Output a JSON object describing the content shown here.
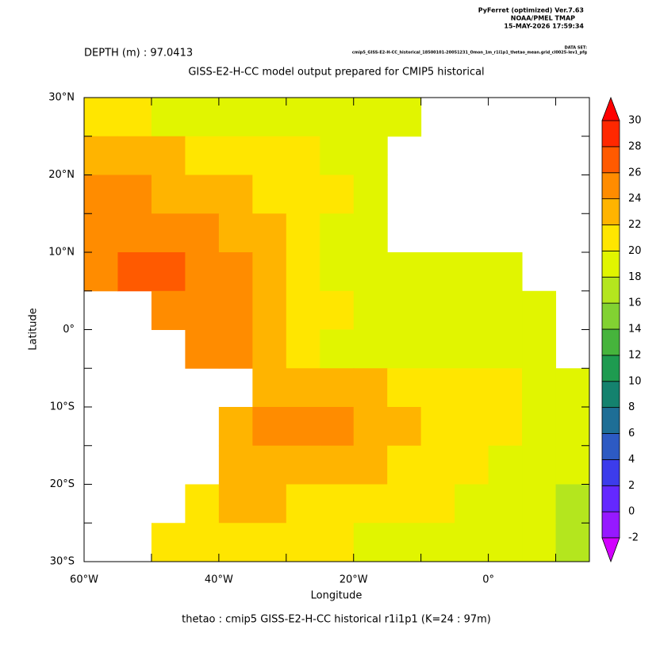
{
  "chart_data": {
    "type": "heatmap",
    "header": [
      "PyFerret (optimized) Ver.7.63",
      "NOAA/PMEL TMAP",
      "15-MAY-2026 17:59:34"
    ],
    "dataset_label": "DATA SET:",
    "dataset": "cmip5_GISS-E2-H-CC_historical_18500101-20051231_Omon_1m_r1i1p1_thetao_mean.grid_cl0025-lev1_pfg",
    "subtitle": "DEPTH (m) : 97.0413",
    "title": "GISS-E2-H-CC model output prepared for CMIP5 historical",
    "xlabel": "Longitude",
    "ylabel": "Latitude",
    "footer": "thetao : cmip5 GISS-E2-H-CC historical r1i1p1   (K=24 : 97m)",
    "xlim": [
      -60,
      15
    ],
    "ylim": [
      -30,
      30
    ],
    "xticks": [
      {
        "value": -60,
        "label": "60°W"
      },
      {
        "value": -40,
        "label": "40°W"
      },
      {
        "value": -20,
        "label": "20°W"
      },
      {
        "value": 0,
        "label": "0°"
      }
    ],
    "xminorticks": [
      -50,
      -30,
      -10,
      10
    ],
    "yticks": [
      {
        "value": 30,
        "label": "30°N"
      },
      {
        "value": 20,
        "label": "20°N"
      },
      {
        "value": 10,
        "label": "10°N"
      },
      {
        "value": 0,
        "label": "0°"
      },
      {
        "value": -10,
        "label": "10°S"
      },
      {
        "value": -20,
        "label": "20°S"
      },
      {
        "value": -30,
        "label": "30°S"
      }
    ],
    "yminorticks": [
      25,
      15,
      5,
      -5,
      -15,
      -25
    ],
    "x": [
      -57.5,
      -52.5,
      -47.5,
      -42.5,
      -37.5,
      -32.5,
      -27.5,
      -22.5,
      -17.5,
      -12.5,
      -7.5,
      -2.5,
      2.5,
      7.5,
      12.5
    ],
    "y": [
      27.5,
      22.5,
      17.5,
      12.5,
      7.5,
      2.5,
      -2.5,
      -7.5,
      -12.5,
      -17.5,
      -22.5,
      -27.5
    ],
    "z": [
      [
        21,
        20,
        19,
        18.5,
        19,
        19.5,
        19.5,
        19.5,
        19,
        18.5,
        null,
        null,
        null,
        null,
        null
      ],
      [
        23,
        22.5,
        22,
        21.5,
        21,
        20.5,
        20,
        19.5,
        18.5,
        null,
        null,
        null,
        null,
        null,
        null
      ],
      [
        24.5,
        24,
        23.5,
        23,
        22.5,
        21,
        20.5,
        20,
        18.5,
        null,
        null,
        null,
        null,
        null,
        null
      ],
      [
        25.5,
        25,
        24.5,
        24,
        23,
        22,
        20.5,
        19.5,
        18.5,
        null,
        null,
        null,
        null,
        null,
        null
      ],
      [
        25.5,
        26,
        26,
        25,
        24,
        22.5,
        20.5,
        19.5,
        19,
        19,
        19,
        19,
        19,
        null,
        null
      ],
      [
        null,
        null,
        25.5,
        25.5,
        24.5,
        23,
        21,
        20,
        19.5,
        19,
        19,
        19,
        19,
        19,
        null
      ],
      [
        null,
        null,
        null,
        24.5,
        24,
        22.5,
        21,
        19,
        18.5,
        18.5,
        18.5,
        19,
        19,
        19,
        null
      ],
      [
        null,
        null,
        null,
        null,
        null,
        22.5,
        23.5,
        23.5,
        22.5,
        21.5,
        21,
        20.5,
        20,
        19.5,
        19
      ],
      [
        null,
        null,
        null,
        null,
        22.5,
        24,
        24.5,
        24,
        23.5,
        22.5,
        21.5,
        20.5,
        20,
        19.5,
        18.5
      ],
      [
        null,
        null,
        null,
        null,
        23,
        23,
        23,
        22.5,
        22,
        21.5,
        21,
        20,
        19.5,
        19,
        18
      ],
      [
        null,
        null,
        null,
        21.5,
        22,
        22,
        21.5,
        21,
        21,
        20.5,
        20,
        19.5,
        19,
        18.5,
        17.5
      ],
      [
        null,
        null,
        21,
        21,
        20.5,
        20.5,
        20.5,
        20,
        19.5,
        19.5,
        19,
        19,
        18.5,
        18,
        17
      ]
    ],
    "levels": [
      -2,
      0,
      2,
      4,
      6,
      8,
      10,
      12,
      14,
      16,
      18,
      20,
      22,
      24,
      26,
      28,
      30
    ],
    "colors": [
      "#d200ff",
      "#9619ff",
      "#6428ff",
      "#3c3ceb",
      "#2d5ac3",
      "#1e6e96",
      "#14826e",
      "#1e9b50",
      "#46b43c",
      "#82d232",
      "#b4e61e",
      "#e1f500",
      "#ffe600",
      "#ffb400",
      "#ff8c00",
      "#ff5a00",
      "#ff2800",
      "#ff0000"
    ]
  }
}
